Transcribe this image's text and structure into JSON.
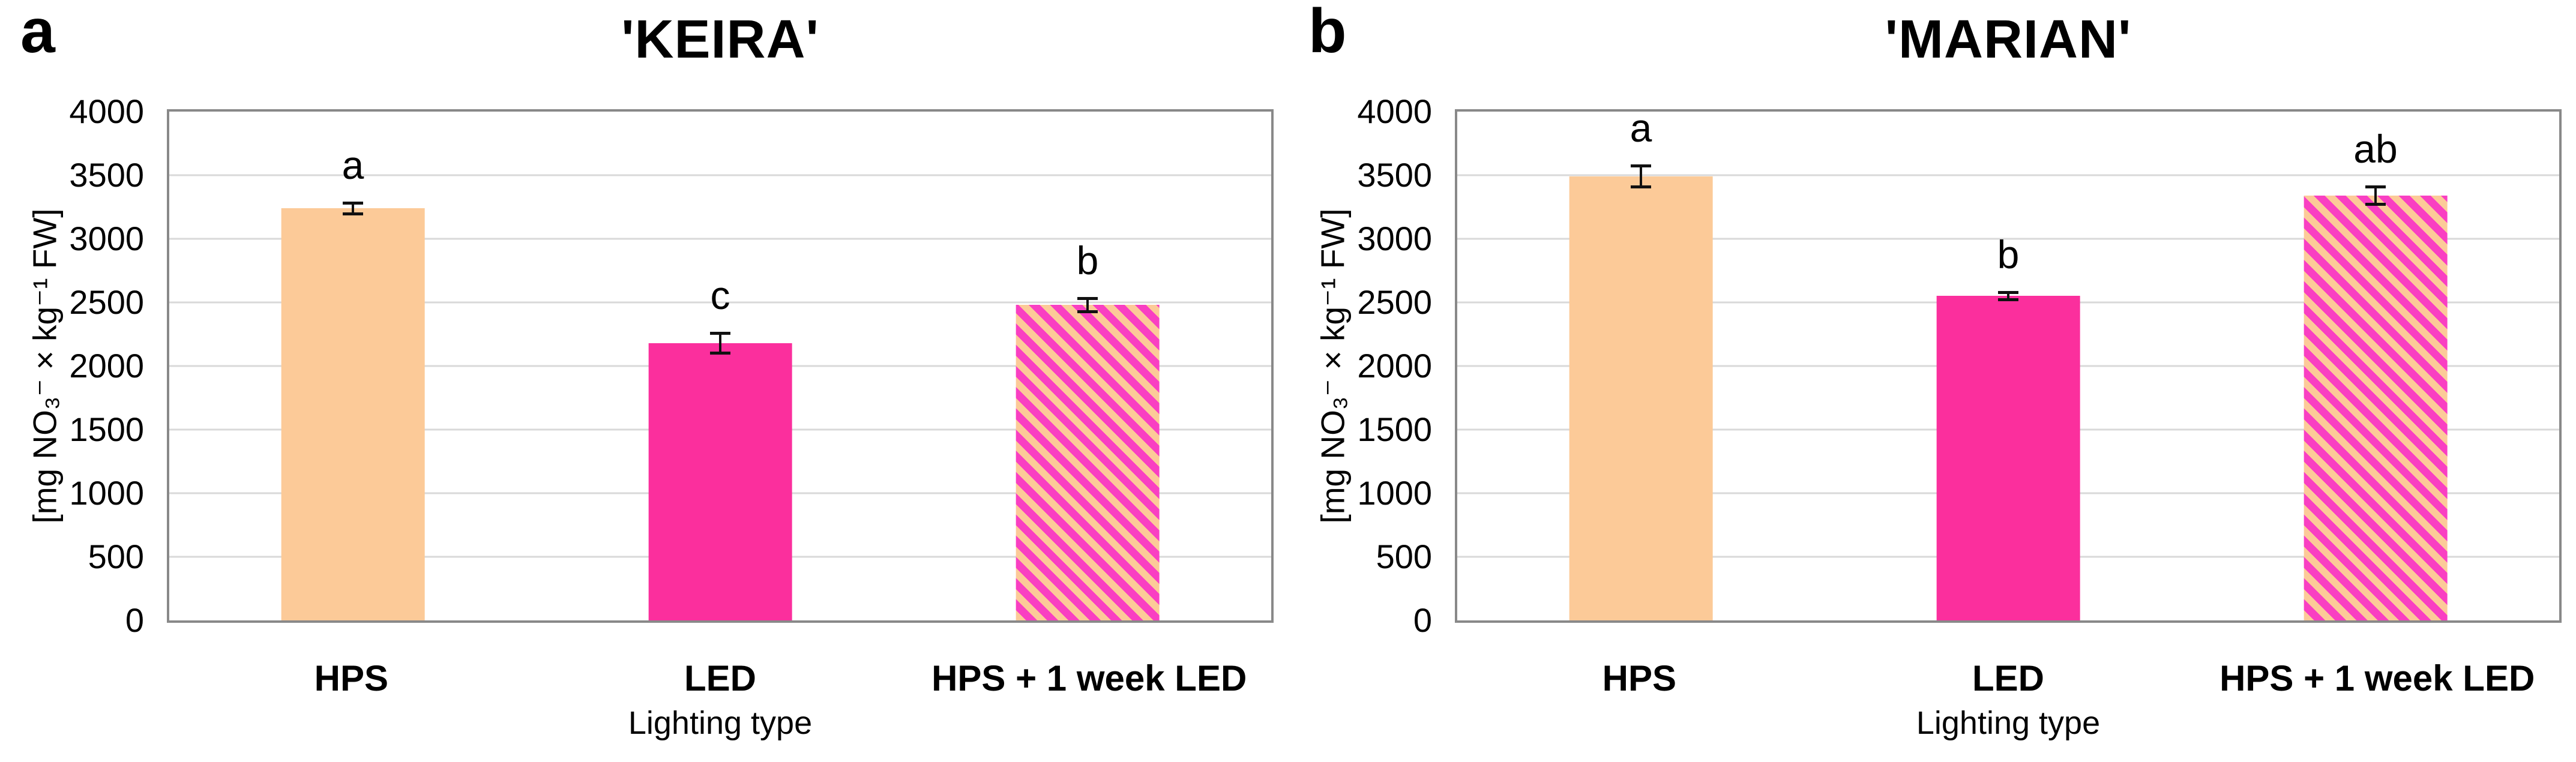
{
  "figure": {
    "background": "#FFFFFF"
  },
  "colors": {
    "hps_bar_peach": "#FCCA98",
    "led_bar_pink": "#FB2F9D",
    "stripe_pink": "#F93FC2",
    "stripe_peach": "#FCCA98",
    "gridline": "#D9D9D9",
    "axis_border": "#898989",
    "error_bar": "#111111",
    "text": "#000000"
  },
  "chart_data": [
    {
      "type": "bar",
      "panel_label": "a",
      "title": "'KEIRA'",
      "xlabel": "Lighting type",
      "ylabel": "[mg NO₃⁻ × kg⁻¹ FW]",
      "ylim": [
        0,
        4000
      ],
      "yticks": [
        0,
        500,
        1000,
        1500,
        2000,
        2500,
        3000,
        3500,
        4000
      ],
      "grid": "horizontal",
      "legend": "none",
      "categories": [
        "HPS",
        "LED",
        "HPS + 1 week LED"
      ],
      "values": [
        3240,
        2180,
        2480
      ],
      "error_bars": [
        45,
        80,
        55
      ],
      "sig_letters": [
        "a",
        "c",
        "b"
      ],
      "bar_styles": [
        "solid-peach",
        "solid-pink",
        "striped"
      ]
    },
    {
      "type": "bar",
      "panel_label": "b",
      "title": "'MARIAN'",
      "xlabel": "Lighting type",
      "ylabel": "[mg NO₃⁻ × kg⁻¹ FW]",
      "ylim": [
        0,
        4000
      ],
      "yticks": [
        0,
        500,
        1000,
        1500,
        2000,
        2500,
        3000,
        3500,
        4000
      ],
      "grid": "horizontal",
      "legend": "none",
      "categories": [
        "HPS",
        "LED",
        "HPS + 1 week LED"
      ],
      "values": [
        3490,
        2550,
        3340
      ],
      "error_bars": [
        85,
        30,
        70
      ],
      "sig_letters": [
        "a",
        "b",
        "ab"
      ],
      "bar_styles": [
        "solid-peach",
        "solid-pink",
        "striped"
      ]
    }
  ]
}
